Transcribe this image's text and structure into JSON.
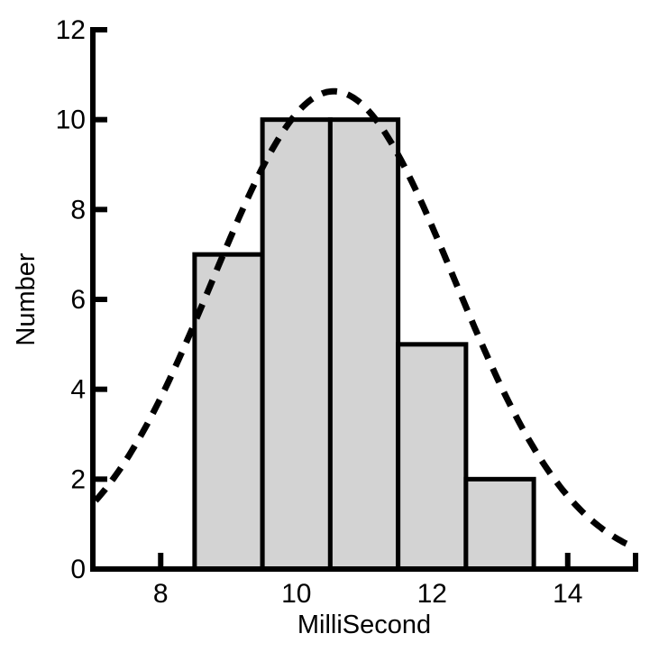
{
  "chart_data": {
    "type": "bar",
    "title": "",
    "xlabel": "MilliSecond",
    "ylabel": "Number",
    "xlim": [
      7,
      15
    ],
    "ylim": [
      0,
      12
    ],
    "xticks": [
      8,
      10,
      12,
      14
    ],
    "x_end_tick": 15,
    "yticks": [
      2,
      4,
      6,
      8,
      10,
      12
    ],
    "ytick_labels": [
      0,
      2,
      4,
      6,
      8,
      10,
      12
    ],
    "bars": [
      {
        "bin_start": 8.5,
        "bin_end": 9.5,
        "count": 7
      },
      {
        "bin_start": 9.5,
        "bin_end": 10.5,
        "count": 10
      },
      {
        "bin_start": 10.5,
        "bin_end": 11.5,
        "count": 10
      },
      {
        "bin_start": 11.5,
        "bin_end": 12.5,
        "count": 5
      },
      {
        "bin_start": 12.5,
        "bin_end": 13.5,
        "count": 2
      }
    ],
    "curve": {
      "type": "gaussian",
      "mean": 10.55,
      "sigma": 1.78,
      "amplitude": 10.63,
      "x_start": 7.04,
      "x_end": 14.98,
      "style": "dashed"
    },
    "grid": false,
    "legend": false,
    "colors": {
      "bar_fill": "#d3d3d3",
      "bar_border": "#000000",
      "curve": "#000000",
      "axis": "#000000",
      "text": "#000000",
      "background": "#ffffff"
    }
  }
}
